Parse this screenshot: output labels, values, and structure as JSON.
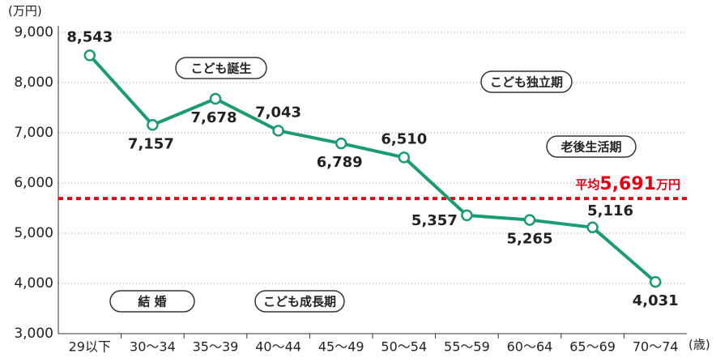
{
  "chart_data": {
    "type": "line",
    "y_unit": "(万円)",
    "x_unit": "(歳)",
    "categories": [
      "29以下",
      "30〜34",
      "35〜39",
      "40〜44",
      "45〜49",
      "50〜54",
      "55〜59",
      "60〜64",
      "65〜69",
      "70〜74"
    ],
    "series": [
      {
        "color": "#1a9b74",
        "values": [
          8543,
          7157,
          7678,
          7043,
          6789,
          6510,
          5357,
          5265,
          5116,
          4031
        ],
        "value_labels": [
          "8,543",
          "7,157",
          "7,678",
          "7,043",
          "6,789",
          "6,510",
          "5,357",
          "5,265",
          "5,116",
          "4,031"
        ]
      }
    ],
    "ylim": [
      3000,
      9000
    ],
    "yticks": [
      {
        "value": 3000,
        "label": "3,000"
      },
      {
        "value": 4000,
        "label": "4,000"
      },
      {
        "value": 5000,
        "label": "5,000"
      },
      {
        "value": 6000,
        "label": "6,000"
      },
      {
        "value": 7000,
        "label": "7,000"
      },
      {
        "value": 8000,
        "label": "8,000"
      },
      {
        "value": 9000,
        "label": "9,000"
      }
    ],
    "grid": true,
    "average": {
      "label": "平均",
      "value": 5691,
      "value_label": "5,691",
      "unit": "万円",
      "color": "#e60012"
    },
    "annotations": [
      "こども誕生",
      "結 婚",
      "こども成長期",
      "こども独立期",
      "老後生活期"
    ]
  }
}
